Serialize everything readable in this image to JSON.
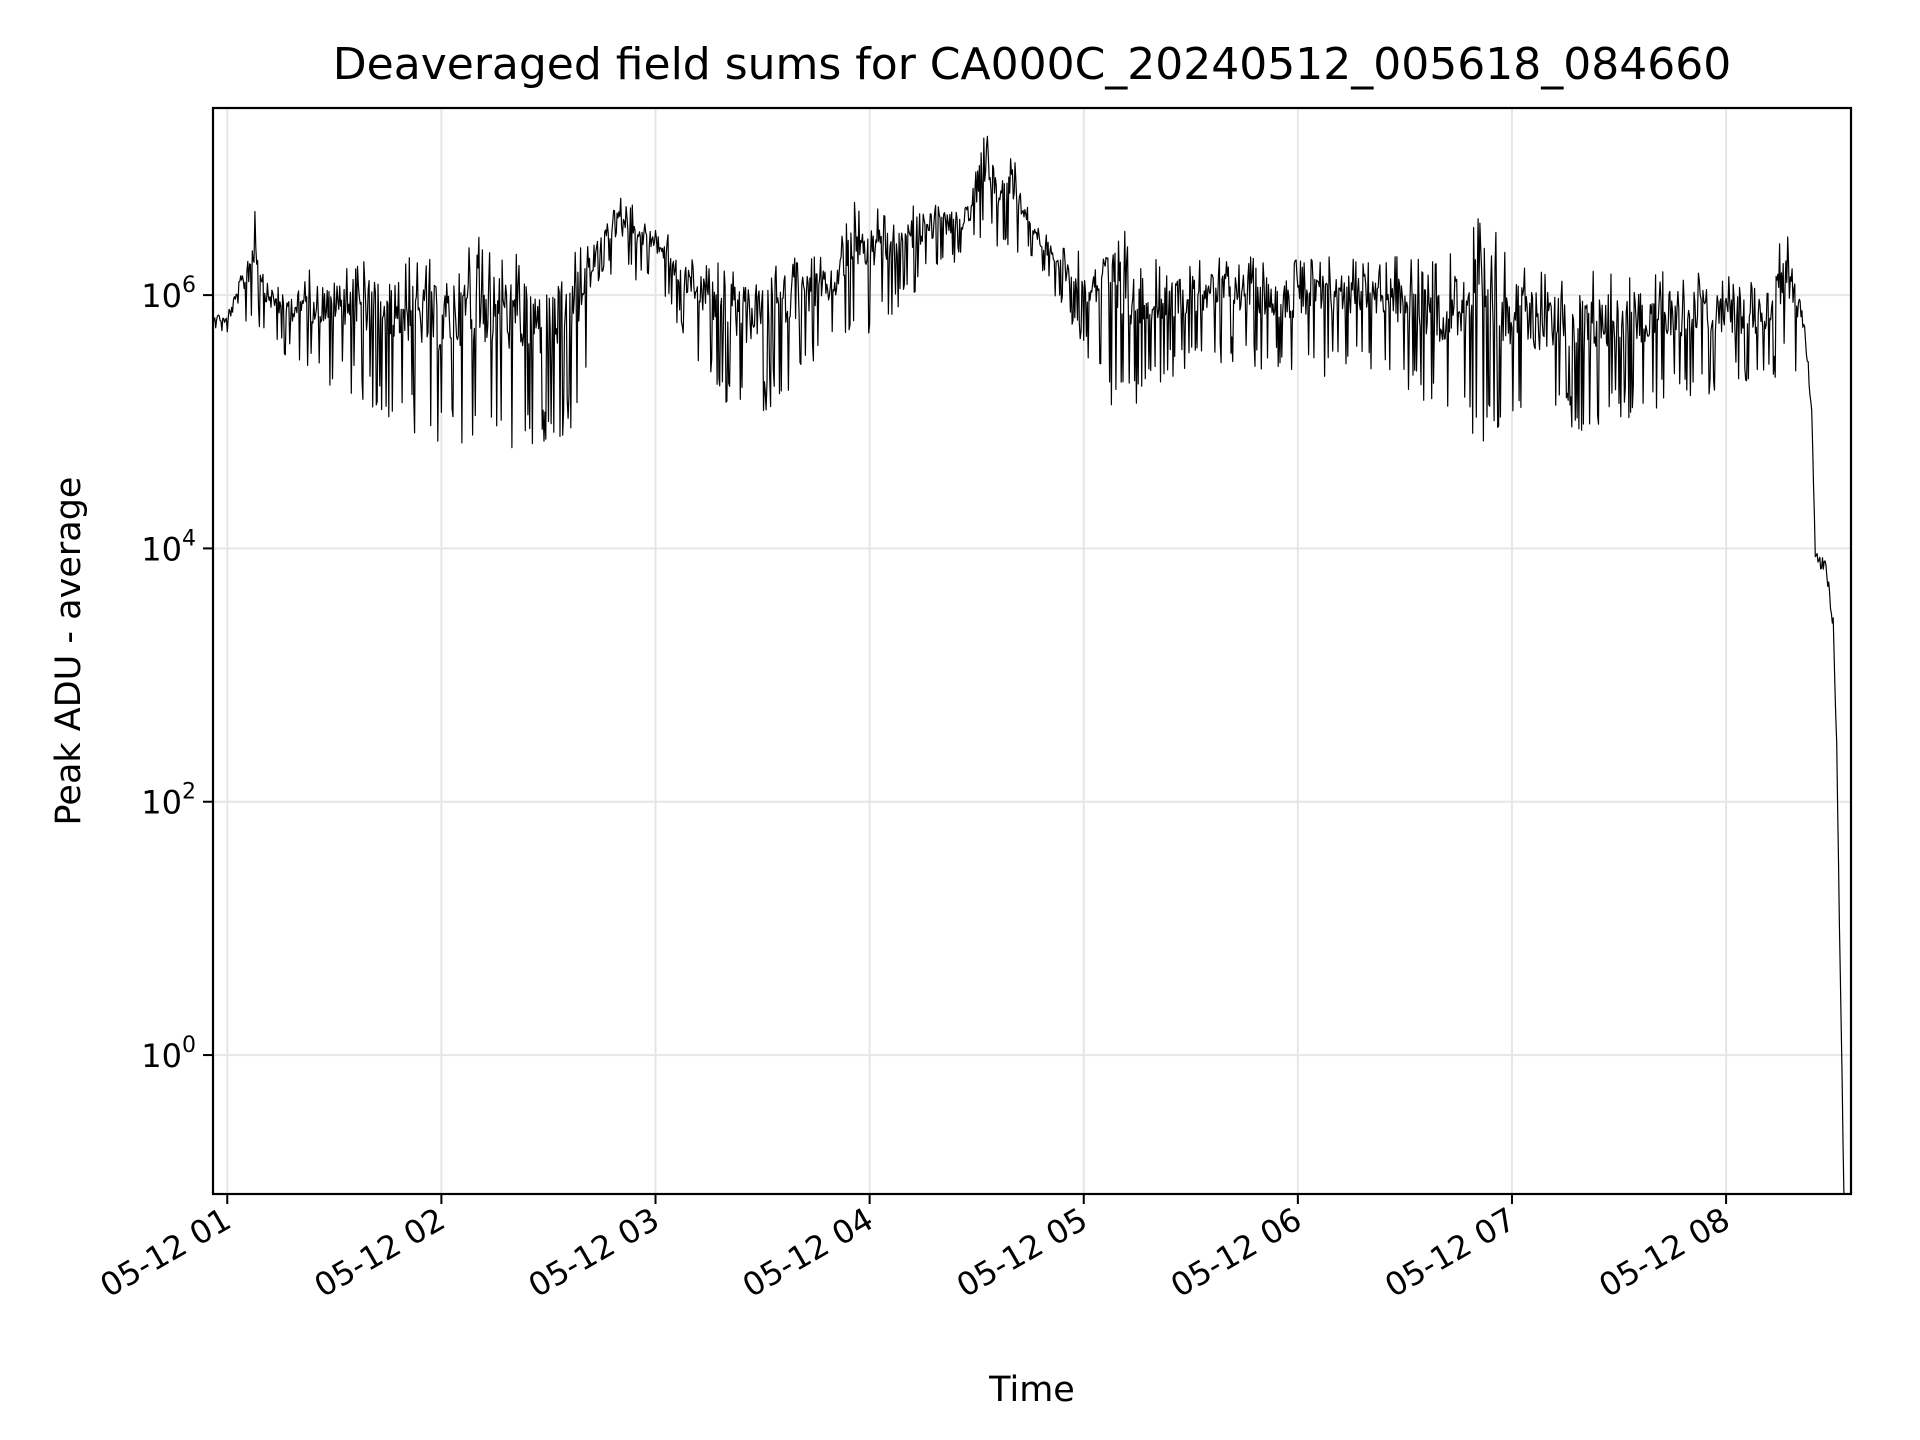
{
  "chart_data": {
    "type": "line",
    "title": "Deaveraged field sums for CA000C_20240512_005618_084660",
    "xlabel": "Time",
    "ylabel": "Peak ADU - average",
    "yscale": "log",
    "xlim": [
      "2024-05-12 00:56",
      "2024-05-12 08:35"
    ],
    "ylim": [
      0.08,
      30000000
    ],
    "grid": true,
    "line_color": "#000000",
    "grid_color": "#e6e6e6",
    "x_ticks": [
      {
        "value": "2024-05-12 01:00",
        "label": "05-12 01"
      },
      {
        "value": "2024-05-12 02:00",
        "label": "05-12 02"
      },
      {
        "value": "2024-05-12 03:00",
        "label": "05-12 03"
      },
      {
        "value": "2024-05-12 04:00",
        "label": "05-12 04"
      },
      {
        "value": "2024-05-12 05:00",
        "label": "05-12 05"
      },
      {
        "value": "2024-05-12 06:00",
        "label": "05-12 06"
      },
      {
        "value": "2024-05-12 07:00",
        "label": "05-12 07"
      },
      {
        "value": "2024-05-12 08:00",
        "label": "05-12 08"
      }
    ],
    "y_ticks": [
      {
        "value": 1,
        "base": "10",
        "exp": "0"
      },
      {
        "value": 100,
        "base": "10",
        "exp": "2"
      },
      {
        "value": 10000,
        "base": "10",
        "exp": "4"
      },
      {
        "value": 1000000,
        "base": "10",
        "exp": "6"
      }
    ],
    "series": [
      {
        "name": "",
        "upper_envelope": [
          [
            "2024-05-12 00:56",
            800000
          ],
          [
            "2024-05-12 01:00",
            700000
          ],
          [
            "2024-05-12 01:05",
            2300000
          ],
          [
            "2024-05-12 01:08",
            5500000
          ],
          [
            "2024-05-12 01:11",
            1500000
          ],
          [
            "2024-05-12 01:15",
            1200000
          ],
          [
            "2024-05-12 01:25",
            1700000
          ],
          [
            "2024-05-12 01:40",
            2100000
          ],
          [
            "2024-05-12 02:00",
            2000000
          ],
          [
            "2024-05-12 02:08",
            3200000
          ],
          [
            "2024-05-12 02:30",
            1800000
          ],
          [
            "2024-05-12 02:42",
            3000000
          ],
          [
            "2024-05-12 02:50",
            6000000
          ],
          [
            "2024-05-12 03:00",
            4000000
          ],
          [
            "2024-05-12 03:10",
            2000000
          ],
          [
            "2024-05-12 03:25",
            1800000
          ],
          [
            "2024-05-12 03:35",
            2200000
          ],
          [
            "2024-05-12 03:50",
            2000000
          ],
          [
            "2024-05-12 03:55",
            6000000
          ],
          [
            "2024-05-12 04:08",
            4000000
          ],
          [
            "2024-05-12 04:15",
            6000000
          ],
          [
            "2024-05-12 04:28",
            5000000
          ],
          [
            "2024-05-12 04:32",
            25000000
          ],
          [
            "2024-05-12 04:36",
            10000000
          ],
          [
            "2024-05-12 04:40",
            15000000
          ],
          [
            "2024-05-12 04:45",
            5000000
          ],
          [
            "2024-05-12 04:52",
            2500000
          ],
          [
            "2024-05-12 05:00",
            2200000
          ],
          [
            "2024-05-12 05:08",
            4000000
          ],
          [
            "2024-05-12 05:20",
            2000000
          ],
          [
            "2024-05-12 05:35",
            2000000
          ],
          [
            "2024-05-12 06:00",
            2000000
          ],
          [
            "2024-05-12 06:20",
            2200000
          ],
          [
            "2024-05-12 06:40",
            1800000
          ],
          [
            "2024-05-12 06:52",
            4500000
          ],
          [
            "2024-05-12 07:05",
            1700000
          ],
          [
            "2024-05-12 07:30",
            1600000
          ],
          [
            "2024-05-12 07:55",
            1600000
          ],
          [
            "2024-05-12 08:10",
            1200000
          ],
          [
            "2024-05-12 08:15",
            3000000
          ],
          [
            "2024-05-12 08:18",
            3000000
          ],
          [
            "2024-05-12 08:20",
            1200000
          ],
          [
            "2024-05-12 08:22",
            600000
          ],
          [
            "2024-05-12 08:24",
            150000
          ],
          [
            "2024-05-12 08:25",
            10000
          ],
          [
            "2024-05-12 08:28",
            8000
          ],
          [
            "2024-05-12 08:30",
            3000
          ],
          [
            "2024-05-12 08:31",
            300
          ],
          [
            "2024-05-12 08:32",
            5
          ],
          [
            "2024-05-12 08:33",
            0.1
          ]
        ],
        "lower_envelope": [
          [
            "2024-05-12 00:56",
            500000
          ],
          [
            "2024-05-12 01:10",
            500000
          ],
          [
            "2024-05-12 01:20",
            250000
          ],
          [
            "2024-05-12 01:35",
            150000
          ],
          [
            "2024-05-12 01:50",
            90000
          ],
          [
            "2024-05-12 02:00",
            60000
          ],
          [
            "2024-05-12 02:20",
            55000
          ],
          [
            "2024-05-12 02:30",
            55000
          ],
          [
            "2024-05-12 02:38",
            100000
          ],
          [
            "2024-05-12 02:45",
            1500000
          ],
          [
            "2024-05-12 03:00",
            1200000
          ],
          [
            "2024-05-12 03:15",
            200000
          ],
          [
            "2024-05-12 03:25",
            90000
          ],
          [
            "2024-05-12 03:35",
            150000
          ],
          [
            "2024-05-12 03:50",
            400000
          ],
          [
            "2024-05-12 04:00",
            500000
          ],
          [
            "2024-05-12 04:20",
            1500000
          ],
          [
            "2024-05-12 04:30",
            2500000
          ],
          [
            "2024-05-12 04:45",
            2000000
          ],
          [
            "2024-05-12 04:55",
            700000
          ],
          [
            "2024-05-12 05:10",
            90000
          ],
          [
            "2024-05-12 05:20",
            200000
          ],
          [
            "2024-05-12 05:40",
            300000
          ],
          [
            "2024-05-12 06:00",
            200000
          ],
          [
            "2024-05-12 06:20",
            250000
          ],
          [
            "2024-05-12 06:40",
            100000
          ],
          [
            "2024-05-12 06:55",
            60000
          ],
          [
            "2024-05-12 07:10",
            80000
          ],
          [
            "2024-05-12 07:30",
            90000
          ],
          [
            "2024-05-12 07:50",
            150000
          ],
          [
            "2024-05-12 08:10",
            200000
          ],
          [
            "2024-05-12 08:20",
            250000
          ]
        ]
      }
    ]
  }
}
